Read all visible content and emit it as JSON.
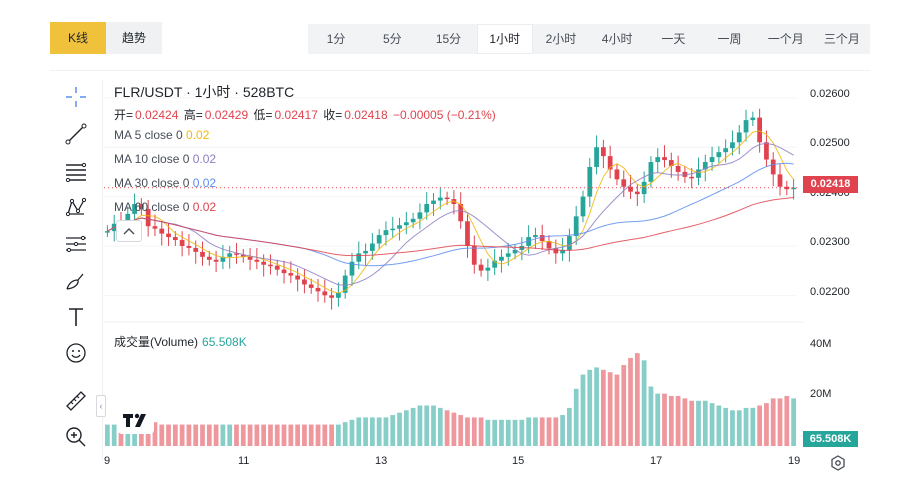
{
  "view_toggle": {
    "kline": "K线",
    "trend": "趋势"
  },
  "intervals": [
    "1分",
    "5分",
    "15分",
    "1小时",
    "2小时",
    "4小时",
    "一天",
    "一周",
    "一个月",
    "三个月"
  ],
  "active_interval": "1小时",
  "legend": {
    "title": "FLR/USDT · 1小时 · 528BTC",
    "open_label": "开=",
    "open": "0.02424",
    "high_label": "高=",
    "high": "0.02429",
    "low_label": "低=",
    "low": "0.02417",
    "close_label": "收=",
    "close": "0.02418",
    "change": "−0.00005 (−0.21%)",
    "ma": [
      {
        "label": "MA 5 close 0",
        "value": "0.02",
        "color": "#f0b90b"
      },
      {
        "label": "MA 10 close 0",
        "value": "0.02",
        "color": "#8e7cc3"
      },
      {
        "label": "MA 30 close 0",
        "value": "0.02",
        "color": "#5b8def"
      },
      {
        "label": "MA 60 close 0",
        "value": "0.02",
        "color": "#e0434e"
      }
    ]
  },
  "volume": {
    "label": "成交量(Volume)",
    "value": "65.508K",
    "tag": "65.508K"
  },
  "price_axis": [
    "0.02600",
    "0.02500",
    "0.02400",
    "0.02300",
    "0.02200"
  ],
  "volume_axis": [
    "40M",
    "20M"
  ],
  "time_axis": [
    "9",
    "11",
    "13",
    "15",
    "17",
    "19"
  ],
  "last_price": "0.02418",
  "colors": {
    "up": "#26a69a",
    "down": "#e0434e",
    "accent": "#f0c23c"
  },
  "tools": [
    "crosshair-icon",
    "trendline-icon",
    "fib-icon",
    "pattern-icon",
    "projection-icon",
    "brush-icon",
    "text-icon",
    "emoji-icon",
    "ruler-icon",
    "zoom-in-icon"
  ],
  "chart_data": {
    "type": "candlestick",
    "symbol": "FLR/USDT",
    "interval": "1小时",
    "ylim": [
      0.0215,
      0.0262
    ],
    "close_series": [
      0.0233,
      0.02345,
      0.0234,
      0.02365,
      0.02385,
      0.02375,
      0.0234,
      0.02335,
      0.02325,
      0.02318,
      0.02312,
      0.023,
      0.02296,
      0.02288,
      0.02278,
      0.02272,
      0.02268,
      0.02278,
      0.02285,
      0.02282,
      0.02278,
      0.02272,
      0.02268,
      0.02262,
      0.0226,
      0.02252,
      0.02245,
      0.0224,
      0.02232,
      0.02222,
      0.02215,
      0.02208,
      0.022,
      0.02195,
      0.02205,
      0.0224,
      0.02268,
      0.02285,
      0.0229,
      0.02305,
      0.02322,
      0.02332,
      0.02335,
      0.02342,
      0.02348,
      0.02355,
      0.02368,
      0.02385,
      0.02392,
      0.02398,
      0.02395,
      0.02385,
      0.0235,
      0.023,
      0.02262,
      0.0225,
      0.02256,
      0.0227,
      0.02278,
      0.02285,
      0.02292,
      0.023,
      0.02318,
      0.02322,
      0.0231,
      0.02295,
      0.02285,
      0.02292,
      0.0232,
      0.0236,
      0.024,
      0.0246,
      0.025,
      0.02482,
      0.02455,
      0.02435,
      0.0242,
      0.0241,
      0.02405,
      0.0243,
      0.0247,
      0.0248,
      0.02474,
      0.02462,
      0.0245,
      0.0244,
      0.02438,
      0.02455,
      0.0247,
      0.0248,
      0.0249,
      0.02498,
      0.0251,
      0.0253,
      0.02555,
      0.0256,
      0.0251,
      0.02475,
      0.02445,
      0.0242,
      0.02415,
      0.02418
    ],
    "volume_series_m": [
      9,
      9,
      10,
      11,
      12,
      10,
      10,
      10,
      9,
      9,
      9,
      9,
      9,
      9,
      9,
      9,
      9,
      9,
      9,
      9,
      9,
      9,
      9,
      9,
      9,
      9,
      9,
      9,
      9,
      9,
      9,
      9,
      9,
      9,
      9,
      10,
      11,
      12,
      12,
      12,
      12,
      12,
      13,
      14,
      15,
      16,
      17,
      17,
      17,
      16,
      15,
      14,
      13,
      12,
      12,
      12,
      11,
      11,
      11,
      11,
      11,
      11,
      12,
      12,
      12,
      12,
      12,
      13,
      16,
      24,
      30,
      32,
      33,
      32,
      31,
      30,
      34,
      37,
      39,
      36,
      25,
      22,
      22,
      21,
      21,
      20,
      19,
      19,
      19,
      18,
      17,
      16,
      15,
      15,
      16,
      16,
      17,
      18,
      20,
      20,
      21,
      20
    ],
    "time_labels": [
      "9",
      "11",
      "13",
      "15",
      "17",
      "19"
    ]
  }
}
